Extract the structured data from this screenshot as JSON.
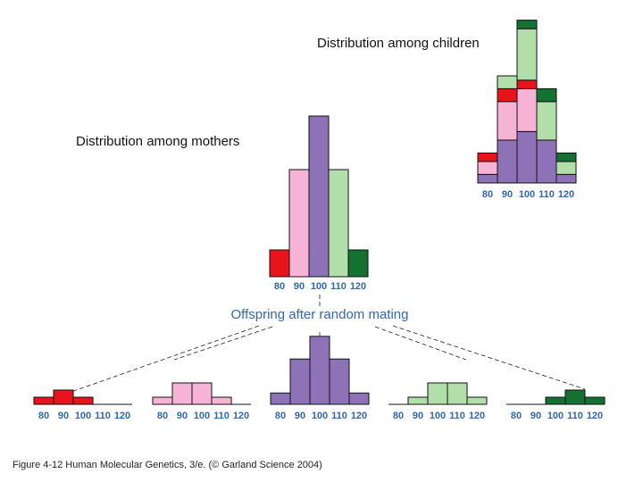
{
  "colors": {
    "red": "#e8141c",
    "pink": "#f6b3d6",
    "purple": "#8e72b7",
    "lightgreen": "#b2deaa",
    "darkgreen": "#137232",
    "tick_text": "#2f67b1"
  },
  "caption": "Figure 4-12  Human Molecular Genetics, 3/e.  (© Garland Science 2004)",
  "offspring_label": "Offspring after random mating",
  "chart_data": [
    {
      "id": "mothers",
      "type": "bar",
      "title": "Distribution among mothers",
      "categories": [
        "80",
        "90",
        "100",
        "110",
        "120"
      ],
      "series": [
        {
          "values": [
            1,
            4,
            6,
            4,
            1
          ],
          "colors": [
            "red",
            "pink",
            "purple",
            "lightgreen",
            "darkgreen"
          ]
        }
      ]
    },
    {
      "id": "children",
      "type": "bar",
      "stacked": true,
      "title": "Distribution among children",
      "categories": [
        "80",
        "90",
        "100",
        "110",
        "120"
      ],
      "segments": [
        [
          {
            "color": "purple",
            "value": 0.5
          },
          {
            "color": "pink",
            "value": 0.75
          },
          {
            "color": "red",
            "value": 0.5
          }
        ],
        [
          {
            "color": "purple",
            "value": 2.5
          },
          {
            "color": "pink",
            "value": 2.25
          },
          {
            "color": "red",
            "value": 0.75
          },
          {
            "color": "lightgreen",
            "value": 0.75
          }
        ],
        [
          {
            "color": "purple",
            "value": 3.0
          },
          {
            "color": "pink",
            "value": 2.5
          },
          {
            "color": "red",
            "value": 0.5
          },
          {
            "color": "lightgreen",
            "value": 3.0
          },
          {
            "color": "darkgreen",
            "value": 0.5
          }
        ],
        [
          {
            "color": "purple",
            "value": 2.5
          },
          {
            "color": "lightgreen",
            "value": 2.25
          },
          {
            "color": "darkgreen",
            "value": 0.75
          }
        ],
        [
          {
            "color": "purple",
            "value": 0.5
          },
          {
            "color": "lightgreen",
            "value": 0.75
          },
          {
            "color": "darkgreen",
            "value": 0.5
          }
        ]
      ]
    },
    {
      "id": "offspring-80",
      "type": "bar",
      "categories": [
        "80",
        "90",
        "100",
        "110",
        "120"
      ],
      "series": [
        {
          "values": [
            1,
            2,
            1,
            0,
            0
          ],
          "colors": [
            "red",
            "red",
            "red",
            "red",
            "red"
          ]
        }
      ]
    },
    {
      "id": "offspring-90",
      "type": "bar",
      "categories": [
        "80",
        "90",
        "100",
        "110",
        "120"
      ],
      "series": [
        {
          "values": [
            1,
            3,
            3,
            1,
            0
          ],
          "colors": [
            "pink",
            "pink",
            "pink",
            "pink",
            "pink"
          ]
        }
      ]
    },
    {
      "id": "offspring-100",
      "type": "bar",
      "categories": [
        "80",
        "90",
        "100",
        "110",
        "120"
      ],
      "series": [
        {
          "values": [
            1,
            4,
            6,
            4,
            1
          ],
          "colors": [
            "purple",
            "purple",
            "purple",
            "purple",
            "purple"
          ]
        }
      ]
    },
    {
      "id": "offspring-110",
      "type": "bar",
      "categories": [
        "80",
        "90",
        "100",
        "110",
        "120"
      ],
      "series": [
        {
          "values": [
            0,
            1,
            3,
            3,
            1
          ],
          "colors": [
            "lightgreen",
            "lightgreen",
            "lightgreen",
            "lightgreen",
            "lightgreen"
          ]
        }
      ]
    },
    {
      "id": "offspring-120",
      "type": "bar",
      "categories": [
        "80",
        "90",
        "100",
        "110",
        "120"
      ],
      "series": [
        {
          "values": [
            0,
            0,
            1,
            2,
            1
          ],
          "colors": [
            "darkgreen",
            "darkgreen",
            "darkgreen",
            "darkgreen",
            "darkgreen"
          ]
        }
      ]
    }
  ]
}
